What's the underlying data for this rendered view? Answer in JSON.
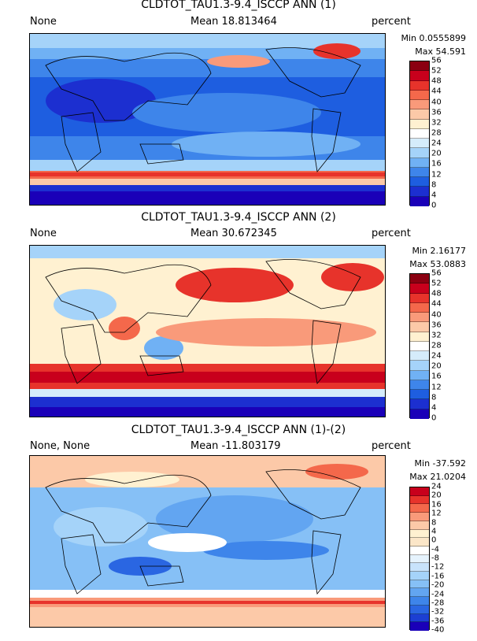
{
  "panels": [
    {
      "title": "CLDTOT_TAU1.3-9.4_ISCCP ANN (1)",
      "left_text": "None",
      "mean": "Mean 18.813464",
      "units": "percent",
      "min": "Min 0.0555899",
      "max": "Max 54.591",
      "colorbar_ticks": [
        "56",
        "52",
        "48",
        "44",
        "40",
        "36",
        "32",
        "28",
        "24",
        "20",
        "16",
        "12",
        "8",
        "4",
        "0"
      ],
      "colorbar_colors": [
        "#8b0011",
        "#c8001c",
        "#e7332b",
        "#f4684b",
        "#f99a7a",
        "#fcc9a8",
        "#fff1d1",
        "#ffffff",
        "#d5ecfb",
        "#a5d3f9",
        "#70b1f4",
        "#3e85ea",
        "#1e5ee0",
        "#1c2fd0",
        "#1a00b8"
      ]
    },
    {
      "title": "CLDTOT_TAU1.3-9.4_ISCCP ANN (2)",
      "left_text": "None",
      "mean": "Mean 30.672345",
      "units": "percent",
      "min": "Min 2.16177",
      "max": "Max 53.0883",
      "colorbar_ticks": [
        "56",
        "52",
        "48",
        "44",
        "40",
        "36",
        "32",
        "28",
        "24",
        "20",
        "16",
        "12",
        "8",
        "4",
        "0"
      ],
      "colorbar_colors": [
        "#8b0011",
        "#c8001c",
        "#e7332b",
        "#f4684b",
        "#f99a7a",
        "#fcc9a8",
        "#fff1d1",
        "#ffffff",
        "#d5ecfb",
        "#a5d3f9",
        "#70b1f4",
        "#3e85ea",
        "#1e5ee0",
        "#1c2fd0",
        "#1a00b8"
      ]
    },
    {
      "title": "CLDTOT_TAU1.3-9.4_ISCCP ANN (1)-(2)",
      "left_text": "None, None",
      "mean": "Mean -11.803179",
      "units": "percent",
      "min": "Min -37.592",
      "max": "Max 21.0204",
      "colorbar_ticks": [
        "24",
        "20",
        "16",
        "12",
        "8",
        "4",
        "0",
        "-4",
        "-8",
        "-12",
        "-16",
        "-20",
        "-24",
        "-28",
        "-32",
        "-36",
        "-40"
      ],
      "colorbar_colors": [
        "#c8001c",
        "#e7332b",
        "#f4684b",
        "#f99a7a",
        "#fcc9a8",
        "#fff1d1",
        "#fbe6c8",
        "#ffffff",
        "#e6f3fd",
        "#c8e3fb",
        "#a5d3f9",
        "#86c0f6",
        "#62a5f1",
        "#3e85ea",
        "#2a66e2",
        "#1c3fd3",
        "#1a00b8"
      ]
    }
  ]
}
